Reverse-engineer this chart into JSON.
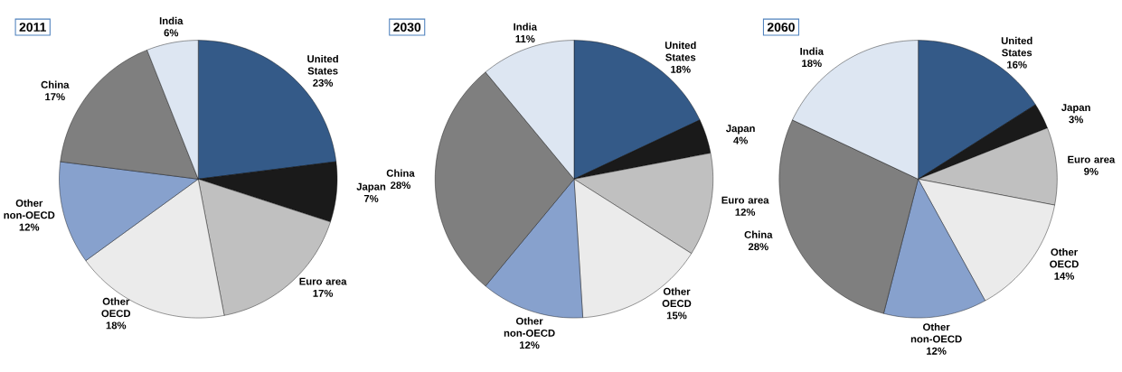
{
  "chart_data": [
    {
      "type": "pie",
      "title": "2011",
      "categories": [
        "United States",
        "Japan",
        "Euro area",
        "Other OECD",
        "Other non-OECD",
        "China",
        "India"
      ],
      "values": [
        23,
        7,
        17,
        18,
        12,
        17,
        6
      ],
      "value_labels": [
        "23%",
        "7%",
        "17%",
        "18%",
        "12%",
        "17%",
        "6%"
      ],
      "colors": [
        "#345a88",
        "#1a1a1a",
        "#c0c0c0",
        "#ebebeb",
        "#87a1cd",
        "#7f7f7f",
        "#dde6f2"
      ]
    },
    {
      "type": "pie",
      "title": "2030",
      "categories": [
        "United States",
        "Japan",
        "Euro area",
        "Other OECD",
        "Other non-OECD",
        "China",
        "India"
      ],
      "values": [
        18,
        4,
        12,
        15,
        12,
        28,
        11
      ],
      "value_labels": [
        "18%",
        "4%",
        "12%",
        "15%",
        "12%",
        "28%",
        "11%"
      ],
      "colors": [
        "#345a88",
        "#1a1a1a",
        "#c0c0c0",
        "#ebebeb",
        "#87a1cd",
        "#7f7f7f",
        "#dde6f2"
      ]
    },
    {
      "type": "pie",
      "title": "2060",
      "categories": [
        "United States",
        "Japan",
        "Euro area",
        "Other OECD",
        "Other non-OECD",
        "China",
        "India"
      ],
      "values": [
        16,
        3,
        9,
        14,
        12,
        28,
        18
      ],
      "value_labels": [
        "16%",
        "3%",
        "9%",
        "14%",
        "12%",
        "28%",
        "18%"
      ],
      "colors": [
        "#345a88",
        "#1a1a1a",
        "#c0c0c0",
        "#ebebeb",
        "#87a1cd",
        "#7f7f7f",
        "#dde6f2"
      ]
    }
  ]
}
